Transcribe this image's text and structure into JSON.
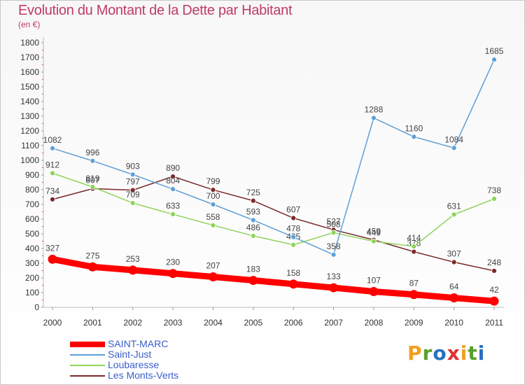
{
  "title": "Evolution du Montant de la Dette par Habitant",
  "unit_label": "(en €)",
  "logo": {
    "text": "Proxiti",
    "colors": [
      "#f0a020",
      "#5aa02a",
      "#2a6fc0",
      "#e03030",
      "#f0a020",
      "#5aa02a",
      "#2a6fc0"
    ]
  },
  "chart_data": {
    "type": "line",
    "title": "Evolution du Montant de la Dette par Habitant",
    "ylabel": "(en €)",
    "xlabel": "",
    "ylim": [
      0,
      1800
    ],
    "yticks": [
      0,
      100,
      200,
      300,
      400,
      500,
      600,
      700,
      800,
      900,
      1000,
      1100,
      1200,
      1300,
      1400,
      1500,
      1600,
      1700,
      1800
    ],
    "categories": [
      "2000",
      "2001",
      "2002",
      "2003",
      "2004",
      "2005",
      "2006",
      "2007",
      "2008",
      "2009",
      "2010",
      "2011"
    ],
    "grid": false,
    "legend_position": "bottom-left",
    "series": [
      {
        "name": "SAINT-MARC",
        "color": "#ff0000",
        "values": [
          327,
          275,
          253,
          230,
          207,
          183,
          158,
          133,
          107,
          87,
          64,
          42
        ]
      },
      {
        "name": "Saint-Just",
        "color": "#5f9fd7",
        "values": [
          1082,
          996,
          903,
          804,
          700,
          593,
          478,
          358,
          1288,
          1160,
          1084,
          1685
        ]
      },
      {
        "name": "Loubaresse",
        "color": "#8ed35a",
        "values": [
          912,
          819,
          709,
          633,
          558,
          486,
          425,
          508,
          449,
          414,
          631,
          738
        ]
      },
      {
        "name": "Les Monts-Verts",
        "color": "#7a2a2a",
        "values": [
          734,
          807,
          797,
          890,
          799,
          725,
          607,
          527,
          459,
          378,
          307,
          248
        ]
      }
    ]
  }
}
